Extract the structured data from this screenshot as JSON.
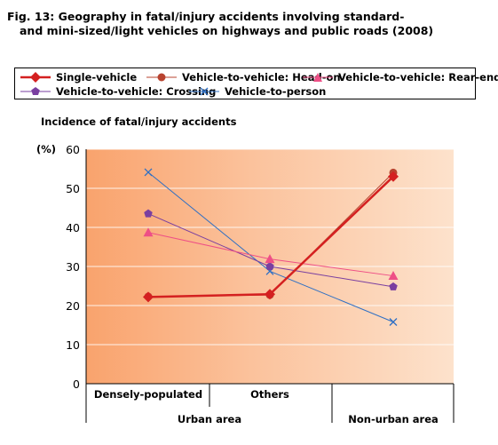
{
  "title_line1": "Fig. 13: Geography in fatal/injury accidents involving standard-",
  "title_line2": "and mini-sized/light vehicles on highways and public roads (2008)",
  "chart_data": {
    "type": "line",
    "ylabel": "Incidence of fatal/injury accidents",
    "yunit": "(%)",
    "ylim": [
      0,
      60
    ],
    "yticks": [
      0,
      10,
      20,
      30,
      40,
      50,
      60
    ],
    "categories": [
      "Densely-populated",
      "Others",
      "Non-urban area"
    ],
    "category_groups": [
      {
        "label": "Urban area",
        "categories": [
          "Densely-populated",
          "Others"
        ]
      },
      {
        "label": "Non-urban area",
        "categories": [
          "Non-urban area"
        ]
      }
    ],
    "grid": true,
    "legend_position": "top",
    "series": [
      {
        "name": "Single-vehicle",
        "values": [
          22.2,
          22.9,
          53.0
        ],
        "color": "#d42020",
        "marker": "diamond"
      },
      {
        "name": "Vehicle-to-vehicle: Head-on",
        "values": [
          22.3,
          22.7,
          54.0
        ],
        "color": "#b8432f",
        "marker": "circle"
      },
      {
        "name": "Vehicle-to-vehicle: Rear-end",
        "values": [
          38.7,
          31.9,
          27.6
        ],
        "color": "#ee4f86",
        "marker": "triangle"
      },
      {
        "name": "Vehicle-to-vehicle: Crossing",
        "values": [
          43.5,
          30.0,
          24.8
        ],
        "color": "#7a3fa0",
        "marker": "pentagon"
      },
      {
        "name": "Vehicle-to-person",
        "values": [
          54.1,
          28.8,
          15.8
        ],
        "color": "#2e6fc4",
        "marker": "x"
      }
    ]
  }
}
